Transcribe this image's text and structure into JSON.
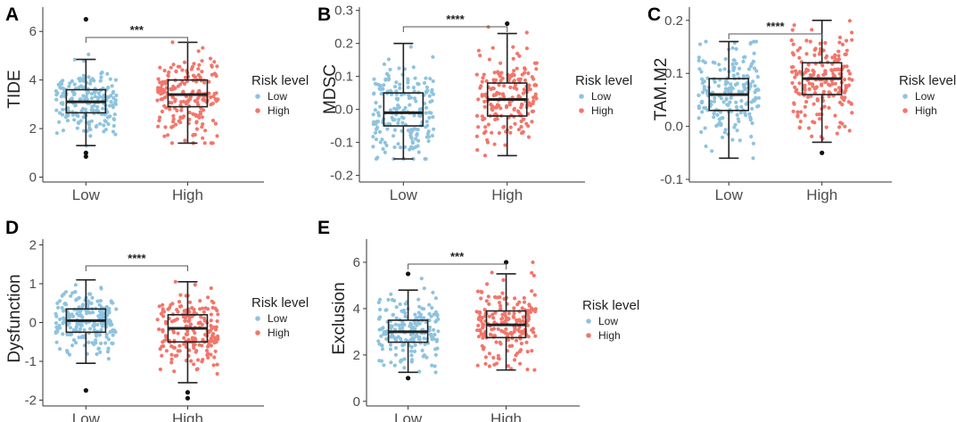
{
  "colors": {
    "low": "#8ec3df",
    "high": "#f2766b",
    "box": "#222222",
    "axis": "#333333",
    "outlier": "#111111"
  },
  "chart_data": [
    {
      "type": "boxplot",
      "panel": "A",
      "ylabel": "TIDE",
      "categories": [
        "Low",
        "High"
      ],
      "ylim": [
        -0.2,
        7.0
      ],
      "yticks": [
        0,
        2,
        4,
        6
      ],
      "legend": {
        "title": "Risk level",
        "items": [
          "Low",
          "High"
        ]
      },
      "significance": "***",
      "boxes": [
        {
          "group": "Low",
          "min": 1.3,
          "q1": 2.65,
          "median": 3.1,
          "q3": 3.6,
          "max": 4.85,
          "outliers": [
            6.5,
            1.0,
            0.85
          ],
          "spread_low": 1.0,
          "spread_high": 5.6
        },
        {
          "group": "High",
          "min": 1.4,
          "q1": 2.9,
          "median": 3.4,
          "q3": 4.0,
          "max": 5.55,
          "outliers": [],
          "spread_low": 1.4,
          "spread_high": 6.1
        }
      ]
    },
    {
      "type": "boxplot",
      "panel": "B",
      "ylabel": "MDSC",
      "categories": [
        "Low",
        "High"
      ],
      "ylim": [
        -0.22,
        0.31
      ],
      "yticks": [
        -0.2,
        -0.1,
        0.0,
        0.1,
        0.2,
        0.3
      ],
      "legend": {
        "title": "Risk level",
        "items": [
          "Low",
          "High"
        ]
      },
      "significance": "****",
      "boxes": [
        {
          "group": "Low",
          "min": -0.15,
          "q1": -0.05,
          "median": -0.01,
          "q3": 0.05,
          "max": 0.2,
          "outliers": [],
          "spread_low": -0.15,
          "spread_high": 0.2
        },
        {
          "group": "High",
          "min": -0.14,
          "q1": -0.02,
          "median": 0.03,
          "q3": 0.08,
          "max": 0.23,
          "outliers": [
            0.26
          ],
          "spread_low": -0.14,
          "spread_high": 0.25
        }
      ]
    },
    {
      "type": "boxplot",
      "panel": "C",
      "ylabel": "TAM.M2",
      "categories": [
        "Low",
        "High"
      ],
      "ylim": [
        -0.105,
        0.225
      ],
      "yticks": [
        -0.1,
        0.0,
        0.1,
        0.2
      ],
      "legend": {
        "title": "Risk level",
        "items": [
          "Low",
          "High"
        ]
      },
      "significance": "****",
      "boxes": [
        {
          "group": "Low",
          "min": -0.06,
          "q1": 0.03,
          "median": 0.06,
          "q3": 0.09,
          "max": 0.16,
          "outliers": [],
          "spread_low": -0.06,
          "spread_high": 0.16
        },
        {
          "group": "High",
          "min": -0.03,
          "q1": 0.06,
          "median": 0.09,
          "q3": 0.12,
          "max": 0.2,
          "outliers": [
            -0.05
          ],
          "spread_low": -0.05,
          "spread_high": 0.2
        }
      ]
    },
    {
      "type": "boxplot",
      "panel": "D",
      "ylabel": "Dysfunction",
      "categories": [
        "Low",
        "High"
      ],
      "ylim": [
        -2.15,
        2.15
      ],
      "yticks": [
        -2,
        -1,
        0,
        1,
        2
      ],
      "legend": {
        "title": "Risk level",
        "items": [
          "Low",
          "High"
        ]
      },
      "significance": "****",
      "boxes": [
        {
          "group": "Low",
          "min": -1.05,
          "q1": -0.25,
          "median": 0.05,
          "q3": 0.35,
          "max": 1.1,
          "outliers": [
            -1.75
          ],
          "spread_low": -1.75,
          "spread_high": 1.1
        },
        {
          "group": "High",
          "min": -1.55,
          "q1": -0.5,
          "median": -0.15,
          "q3": 0.2,
          "max": 1.05,
          "outliers": [
            -1.8,
            -1.95
          ],
          "spread_low": -1.95,
          "spread_high": 1.05
        }
      ]
    },
    {
      "type": "boxplot",
      "panel": "E",
      "ylabel": "Exclusion",
      "categories": [
        "Low",
        "High"
      ],
      "ylim": [
        -0.2,
        7.0
      ],
      "yticks": [
        0,
        2,
        4,
        6
      ],
      "legend": {
        "title": "Risk level",
        "items": [
          "Low",
          "High"
        ]
      },
      "significance": "***",
      "boxes": [
        {
          "group": "Low",
          "min": 1.25,
          "q1": 2.55,
          "median": 3.0,
          "q3": 3.5,
          "max": 4.8,
          "outliers": [
            5.5,
            1.0
          ],
          "spread_low": 0.9,
          "spread_high": 5.3
        },
        {
          "group": "High",
          "min": 1.35,
          "q1": 2.75,
          "median": 3.3,
          "q3": 3.9,
          "max": 5.5,
          "outliers": [
            6.0
          ],
          "spread_low": 1.35,
          "spread_high": 6.0
        }
      ]
    }
  ]
}
